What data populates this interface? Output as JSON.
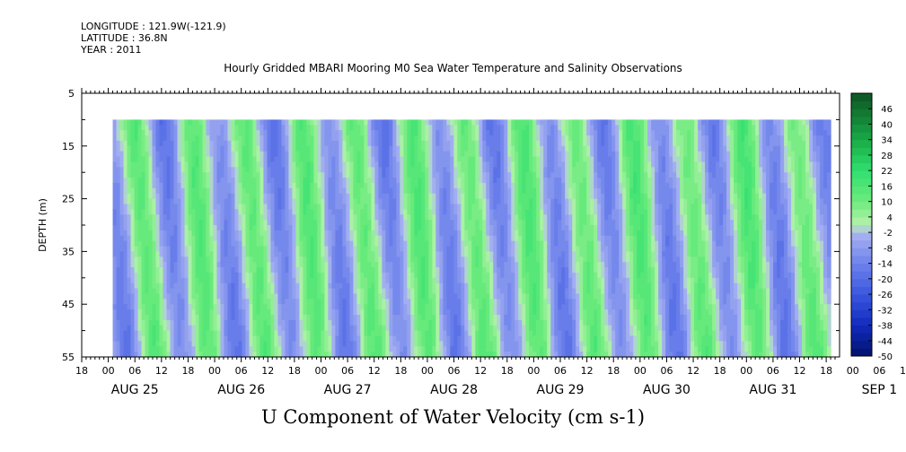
{
  "header": {
    "longitude": "LONGITUDE : 121.9W(-121.9)",
    "latitude": "LATITUDE : 36.8N",
    "year": "YEAR : 2011"
  },
  "title": "Hourly Gridded MBARI Mooring M0 Sea Water Temperature and Salinity Observations",
  "chart_data": {
    "type": "heatmap",
    "title": "Hourly Gridded MBARI Mooring M0 Sea Water Temperature and Salinity Observations",
    "xlabel": "U Component of Water Velocity (cm s-1)",
    "ylabel": "DEPTH (m)",
    "y_ticks": [
      5,
      15,
      25,
      35,
      45,
      55
    ],
    "y_range": [
      5,
      55
    ],
    "y_reversed": true,
    "data_depth_range": [
      10,
      55
    ],
    "x_hour_ticks": [
      "18",
      "00",
      "06",
      "12",
      "18",
      "00",
      "06",
      "12",
      "18",
      "00",
      "06",
      "12",
      "18",
      "00",
      "06",
      "12",
      "18",
      "00",
      "06",
      "12",
      "18",
      "00",
      "06",
      "12",
      "18",
      "00",
      "06",
      "12",
      "18",
      "00",
      "06",
      "12",
      "18"
    ],
    "x_date_labels": [
      "AUG 25",
      "AUG 26",
      "AUG 27",
      "AUG 28",
      "AUG 29",
      "AUG 30",
      "AUG 31",
      "SEP  1"
    ],
    "x_range_hours": [
      -6,
      162
    ],
    "data_start_hour": 1,
    "data_end_hour": 163,
    "colorbar": {
      "ticks": [
        "46",
        "40",
        "34",
        "28",
        "22",
        "16",
        "10",
        "4",
        "-2",
        "-8",
        "-14",
        "-20",
        "-26",
        "-32",
        "-38",
        "-44",
        "-50"
      ],
      "range": [
        -50,
        52
      ],
      "step": 3,
      "colors": {
        "deep_negative": "#00126b",
        "mid_negative": "#3a57e0",
        "near_zero_negative": "#a9b4f2",
        "near_zero_positive": "#b6f2ad",
        "mid_positive": "#30e070",
        "deep_positive": "#0d5424"
      }
    },
    "pattern": "alternating vertical bands of positive (green) and negative (blue) velocity with semidiurnal period, values mostly between -26 and 22 cm/s"
  }
}
